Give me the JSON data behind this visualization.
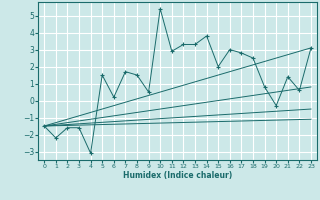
{
  "xlabel": "Humidex (Indice chaleur)",
  "ylabel": "",
  "bg_color": "#cce8e8",
  "grid_color": "#ffffff",
  "line_color": "#1a6b6b",
  "xlim": [
    -0.5,
    23.5
  ],
  "ylim": [
    -3.5,
    5.8
  ],
  "xticks": [
    0,
    1,
    2,
    3,
    4,
    5,
    6,
    7,
    8,
    9,
    10,
    11,
    12,
    13,
    14,
    15,
    16,
    17,
    18,
    19,
    20,
    21,
    22,
    23
  ],
  "yticks": [
    -3,
    -2,
    -1,
    0,
    1,
    2,
    3,
    4,
    5
  ],
  "data_x": [
    0,
    1,
    2,
    3,
    4,
    5,
    6,
    7,
    8,
    9,
    10,
    11,
    12,
    13,
    14,
    15,
    16,
    17,
    18,
    19,
    20,
    21,
    22,
    23
  ],
  "data_y": [
    -1.5,
    -2.2,
    -1.6,
    -1.6,
    -3.1,
    1.5,
    0.2,
    1.7,
    1.5,
    0.5,
    5.4,
    2.9,
    3.3,
    3.3,
    3.8,
    2.0,
    3.0,
    2.8,
    2.5,
    0.8,
    -0.3,
    1.4,
    0.6,
    3.1
  ],
  "fan_lines": [
    {
      "x0": 0,
      "y0": -1.5,
      "x1": 23,
      "y1": 3.1
    },
    {
      "x0": 0,
      "y0": -1.5,
      "x1": 23,
      "y1": 0.8
    },
    {
      "x0": 0,
      "y0": -1.5,
      "x1": 23,
      "y1": -0.5
    },
    {
      "x0": 0,
      "y0": -1.5,
      "x1": 23,
      "y1": -1.1
    }
  ]
}
